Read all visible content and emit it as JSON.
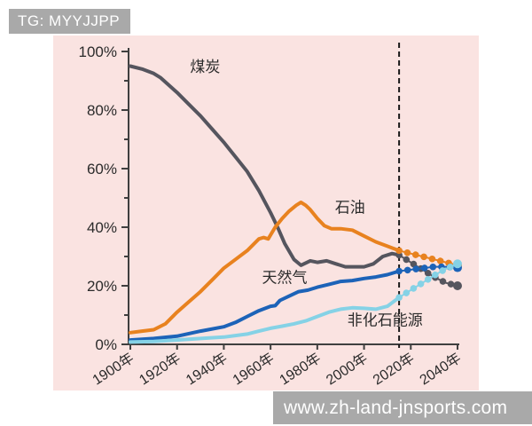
{
  "watermarks": {
    "top_left": "TG: MYYJJPP",
    "bottom_right": "www.zh-land-jnsports.com"
  },
  "chart_data": {
    "type": "line",
    "title": "",
    "xlabel": "",
    "ylabel": "",
    "x_range": [
      1900,
      2040
    ],
    "y_range": [
      0,
      100
    ],
    "x_ticks": [
      "1900年",
      "1920年",
      "1940年",
      "1960年",
      "1980年",
      "2000年",
      "2020年",
      "2040年"
    ],
    "x_tick_years": [
      1900,
      1920,
      1940,
      1960,
      1980,
      2000,
      2020,
      2040
    ],
    "y_ticks": [
      "0%",
      "20%",
      "40%",
      "60%",
      "80%",
      "100%"
    ],
    "y_tick_values": [
      0,
      20,
      40,
      60,
      80,
      100
    ],
    "y_minor_step": 10,
    "grid": false,
    "legend_position": "inline-labels",
    "forecast_divider_year": 2015,
    "forecast_style": "dotted-markers",
    "colors": {
      "background": "#FAE3E1",
      "axis": "#3F3F3F",
      "text": "#2B2B2B",
      "divider": "#1A1A1A",
      "watermark_bg": "#A9A9A9",
      "watermark_text": "#FFFFFF"
    },
    "series": [
      {
        "name": "煤炭",
        "color": "#55555E",
        "label_pos": {
          "year": 1932,
          "pct": 93
        },
        "history": [
          [
            1900,
            95
          ],
          [
            1905,
            94
          ],
          [
            1910,
            92.5
          ],
          [
            1913,
            91
          ],
          [
            1920,
            86
          ],
          [
            1925,
            82
          ],
          [
            1930,
            78
          ],
          [
            1935,
            73.5
          ],
          [
            1940,
            69
          ],
          [
            1945,
            64
          ],
          [
            1950,
            59
          ],
          [
            1955,
            52.5
          ],
          [
            1960,
            45
          ],
          [
            1963,
            40
          ],
          [
            1966,
            34.5
          ],
          [
            1970,
            29
          ],
          [
            1973,
            27
          ],
          [
            1977,
            28.5
          ],
          [
            1980,
            28
          ],
          [
            1984,
            28.5
          ],
          [
            1988,
            27.5
          ],
          [
            1992,
            26.5
          ],
          [
            1996,
            26.5
          ],
          [
            2000,
            26.5
          ],
          [
            2004,
            27.5
          ],
          [
            2008,
            30
          ],
          [
            2012,
            31
          ],
          [
            2015,
            30.5
          ]
        ],
        "forecast": [
          [
            2015,
            30.5
          ],
          [
            2020,
            28
          ],
          [
            2025,
            25.5
          ],
          [
            2030,
            23
          ],
          [
            2035,
            21
          ],
          [
            2040,
            20
          ]
        ]
      },
      {
        "name": "石油",
        "color": "#E8821F",
        "label_pos": {
          "year": 1994,
          "pct": 45
        },
        "history": [
          [
            1900,
            4
          ],
          [
            1905,
            4.5
          ],
          [
            1910,
            5
          ],
          [
            1915,
            7
          ],
          [
            1920,
            11
          ],
          [
            1925,
            14.5
          ],
          [
            1930,
            18
          ],
          [
            1935,
            22
          ],
          [
            1940,
            26
          ],
          [
            1945,
            29
          ],
          [
            1950,
            32
          ],
          [
            1955,
            36
          ],
          [
            1957,
            36.5
          ],
          [
            1959,
            36
          ],
          [
            1962,
            40
          ],
          [
            1965,
            43
          ],
          [
            1968,
            45.5
          ],
          [
            1971,
            47.5
          ],
          [
            1973,
            48.5
          ],
          [
            1975,
            47.5
          ],
          [
            1977,
            46
          ],
          [
            1980,
            43
          ],
          [
            1983,
            40.5
          ],
          [
            1986,
            39.5
          ],
          [
            1990,
            39.5
          ],
          [
            1995,
            39
          ],
          [
            2000,
            37
          ],
          [
            2005,
            35
          ],
          [
            2010,
            33.5
          ],
          [
            2015,
            32
          ]
        ],
        "forecast": [
          [
            2015,
            32
          ],
          [
            2020,
            31
          ],
          [
            2025,
            30
          ],
          [
            2030,
            29
          ],
          [
            2035,
            28
          ],
          [
            2040,
            27
          ]
        ]
      },
      {
        "name": "天然气",
        "color": "#1C63B8",
        "label_pos": {
          "year": 1966,
          "pct": 21
        },
        "history": [
          [
            1900,
            1.5
          ],
          [
            1910,
            2
          ],
          [
            1920,
            2.8
          ],
          [
            1930,
            4.5
          ],
          [
            1940,
            6
          ],
          [
            1945,
            7.5
          ],
          [
            1950,
            9.5
          ],
          [
            1955,
            11.5
          ],
          [
            1960,
            13
          ],
          [
            1962,
            13.2
          ],
          [
            1964,
            15
          ],
          [
            1968,
            16.5
          ],
          [
            1972,
            18
          ],
          [
            1976,
            18.5
          ],
          [
            1980,
            19.5
          ],
          [
            1985,
            20.5
          ],
          [
            1990,
            21.5
          ],
          [
            1995,
            21.8
          ],
          [
            2000,
            22.5
          ],
          [
            2005,
            23
          ],
          [
            2010,
            23.8
          ],
          [
            2015,
            25
          ]
        ],
        "forecast": [
          [
            2015,
            25
          ],
          [
            2020,
            25.5
          ],
          [
            2025,
            26
          ],
          [
            2030,
            26.5
          ],
          [
            2035,
            26.5
          ],
          [
            2040,
            26.2
          ]
        ]
      },
      {
        "name": "非化石能源",
        "color": "#85D2E6",
        "label_pos": {
          "year": 2009,
          "pct": 6.5
        },
        "history": [
          [
            1900,
            0.8
          ],
          [
            1910,
            1
          ],
          [
            1920,
            1.5
          ],
          [
            1930,
            2
          ],
          [
            1940,
            2.5
          ],
          [
            1950,
            3.5
          ],
          [
            1955,
            4.5
          ],
          [
            1960,
            5.5
          ],
          [
            1965,
            6.2
          ],
          [
            1970,
            7
          ],
          [
            1975,
            8
          ],
          [
            1980,
            9.5
          ],
          [
            1985,
            11
          ],
          [
            1990,
            12
          ],
          [
            1995,
            12.5
          ],
          [
            2000,
            12.3
          ],
          [
            2005,
            12
          ],
          [
            2010,
            13
          ],
          [
            2015,
            16
          ]
        ],
        "forecast": [
          [
            2015,
            16
          ],
          [
            2020,
            18.5
          ],
          [
            2025,
            21
          ],
          [
            2030,
            23.5
          ],
          [
            2035,
            25.8
          ],
          [
            2040,
            27.5
          ]
        ]
      }
    ]
  }
}
